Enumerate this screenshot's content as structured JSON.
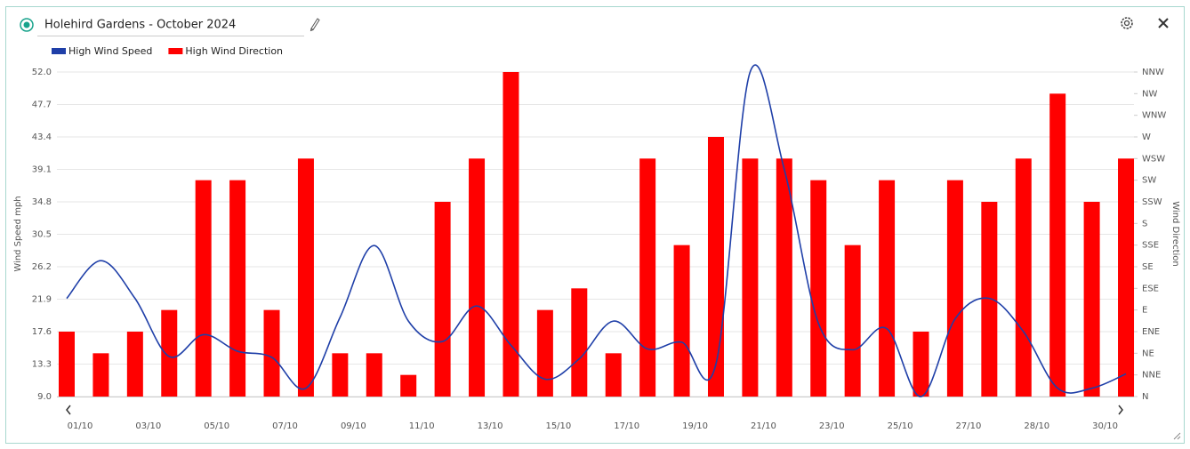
{
  "chart_data": {
    "type": "combo",
    "title": "Holehird Gardens - October 2024",
    "ylabel": "Wind Speed mph",
    "y2label": "Wind Direction",
    "categories": [
      "01/10",
      null,
      "03/10",
      null,
      "05/10",
      null,
      "07/10",
      null,
      "09/10",
      null,
      "11/10",
      null,
      "13/10",
      null,
      "15/10",
      null,
      "17/10",
      null,
      "19/10",
      null,
      "21/10",
      null,
      "23/10",
      null,
      "25/10",
      null,
      "27/10",
      null,
      "28/10",
      null,
      "30/10",
      null
    ],
    "series": [
      {
        "name": "High Wind Speed",
        "type": "line",
        "color": "#1f3fa8",
        "values": [
          22.0,
          27.0,
          22.0,
          14.3,
          17.2,
          15.0,
          14.2,
          10.1,
          19.5,
          29.0,
          19.0,
          16.3,
          21.0,
          15.8,
          11.3,
          14.0,
          19.0,
          15.3,
          16.2,
          13.3,
          52.0,
          39.1,
          18.7,
          15.2,
          18.0,
          9.0,
          19.3,
          22.0,
          17.6,
          10.1,
          10.1,
          12.0
        ]
      },
      {
        "name": "High Wind Direction",
        "type": "bar",
        "color": "#ff0000",
        "axis": "y2",
        "values": [
          67.5,
          45,
          67.5,
          90,
          225,
          225,
          90,
          247.5,
          45,
          45,
          22.5,
          202.5,
          247.5,
          337.5,
          90,
          112.5,
          45,
          247.5,
          157.5,
          270,
          247.5,
          247.5,
          225,
          157.5,
          225,
          67.5,
          225,
          202.5,
          247.5,
          315,
          202.5,
          247.5
        ]
      }
    ],
    "ylim": [
      9,
      52
    ],
    "yticks": [
      {
        "value": 9,
        "label": "9.0"
      },
      13.3,
      17.6,
      21.9,
      26.2,
      30.5,
      34.8,
      39.1,
      43.4,
      47.7,
      {
        "value": 52,
        "label": "52.0"
      }
    ],
    "y2lim": [
      0,
      337.5
    ],
    "y2ticks": [
      {
        "value": 0,
        "label": "N"
      },
      {
        "value": 22.5,
        "label": "NNE"
      },
      {
        "value": 45,
        "label": "NE"
      },
      {
        "value": 67.5,
        "label": "ENE"
      },
      {
        "value": 90,
        "label": "E"
      },
      {
        "value": 112.5,
        "label": "ESE"
      },
      {
        "value": 135,
        "label": "SE"
      },
      {
        "value": 157.5,
        "label": "SSE"
      },
      {
        "value": 180,
        "label": "S"
      },
      {
        "value": 202.5,
        "label": "SSW"
      },
      {
        "value": 225,
        "label": "SW"
      },
      {
        "value": 247.5,
        "label": "WSW"
      },
      {
        "value": 270,
        "label": "W"
      },
      {
        "value": 292.5,
        "label": "WNW"
      },
      {
        "value": 315,
        "label": "NW"
      },
      {
        "value": 337.5,
        "label": "NNW"
      }
    ],
    "grid": true,
    "legend": "top-left"
  }
}
